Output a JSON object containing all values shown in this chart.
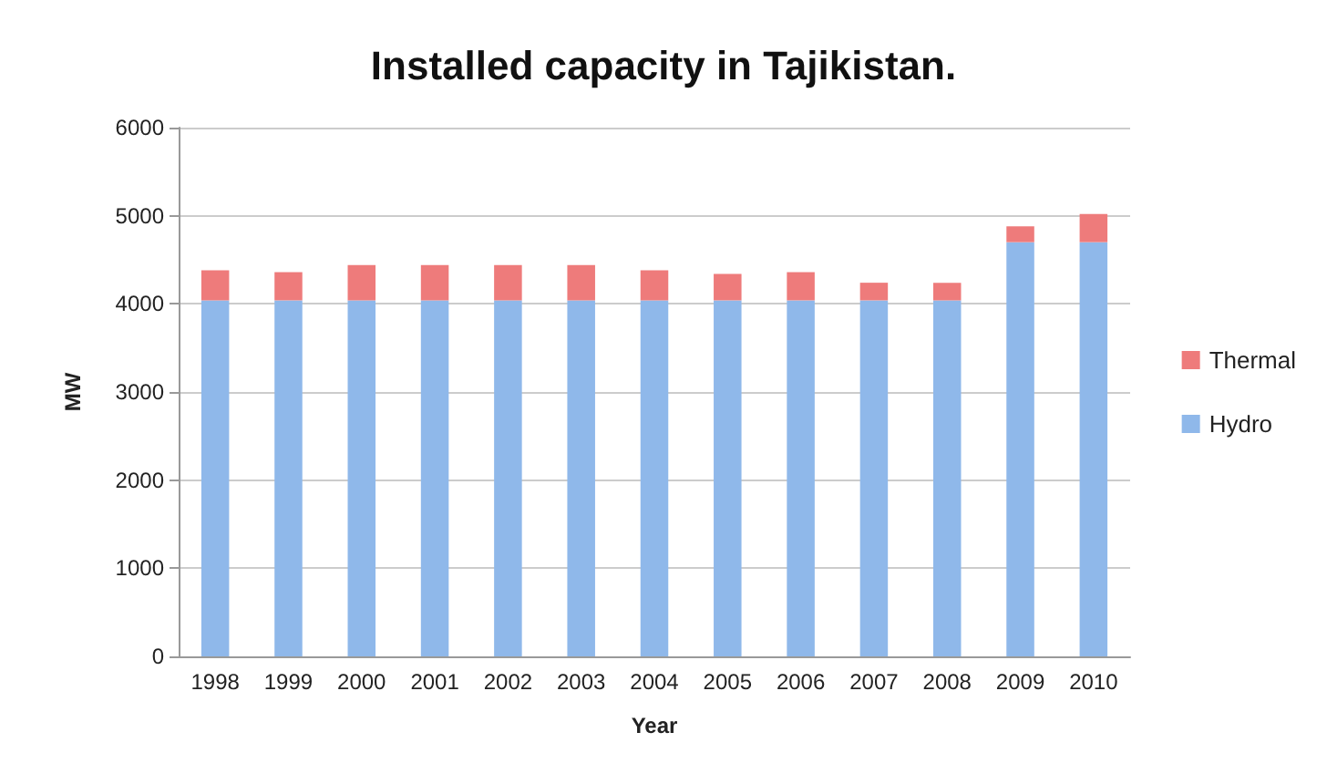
{
  "chart_data": {
    "type": "bar",
    "title": "Installed capacity in Tajikistan.",
    "xlabel": "Year",
    "ylabel": "MW",
    "categories": [
      "1998",
      "1999",
      "2000",
      "2001",
      "2002",
      "2003",
      "2004",
      "2005",
      "2006",
      "2007",
      "2008",
      "2009",
      "2010"
    ],
    "stacked": true,
    "series": [
      {
        "name": "Hydro",
        "color": "#8fb8ea",
        "values": [
          4040,
          4040,
          4040,
          4040,
          4040,
          4040,
          4040,
          4040,
          4040,
          4040,
          4040,
          4700,
          4700
        ]
      },
      {
        "name": "Thermal",
        "color": "#ee7b7b",
        "values": [
          340,
          320,
          400,
          400,
          400,
          400,
          340,
          300,
          320,
          200,
          200,
          180,
          320
        ]
      }
    ],
    "ylim": [
      0,
      6000
    ],
    "yticks": [
      0,
      1000,
      2000,
      3000,
      4000,
      5000,
      6000
    ],
    "grid": "y",
    "legend": "right"
  }
}
